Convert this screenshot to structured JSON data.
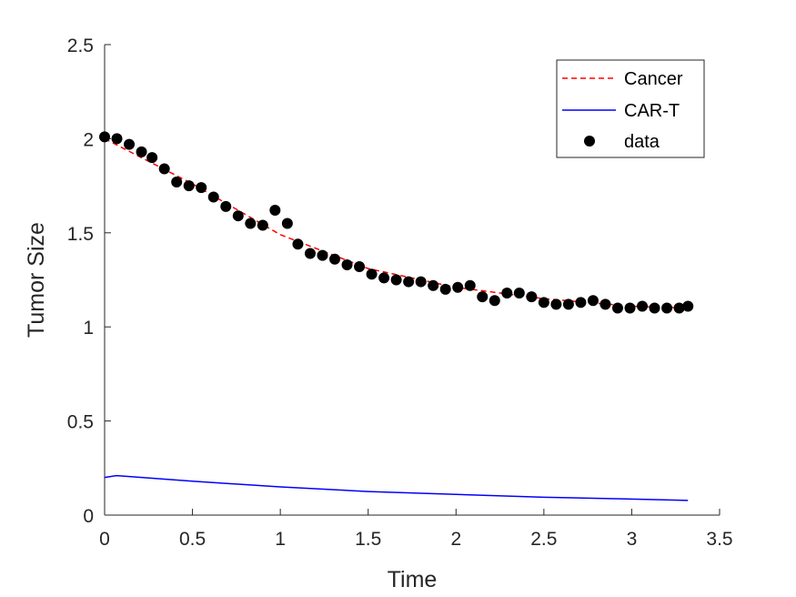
{
  "chart_data": {
    "type": "line",
    "xlabel": "Time",
    "ylabel": "Tumor Size",
    "xlim": [
      0,
      3.5
    ],
    "ylim": [
      0,
      2.5
    ],
    "xticks": [
      "0",
      "0.5",
      "1",
      "1.5",
      "2",
      "2.5",
      "3",
      "3.5"
    ],
    "yticks": [
      "0",
      "0.5",
      "1",
      "1.5",
      "2",
      "2.5"
    ],
    "grid": false,
    "legend_position": "top-right",
    "series": [
      {
        "name": "Cancer",
        "style": "dashed",
        "color": "#ff0000",
        "x": [
          0,
          0.5,
          1.0,
          1.5,
          2.0,
          2.5,
          3.0,
          3.32
        ],
        "y": [
          2.0,
          1.76,
          1.49,
          1.31,
          1.21,
          1.15,
          1.11,
          1.1
        ]
      },
      {
        "name": "CAR-T",
        "style": "solid",
        "color": "#0000ff",
        "x": [
          0,
          0.07,
          0.5,
          1.0,
          1.5,
          2.0,
          2.5,
          3.0,
          3.32
        ],
        "y": [
          0.2,
          0.21,
          0.18,
          0.15,
          0.125,
          0.11,
          0.095,
          0.085,
          0.078
        ]
      },
      {
        "name": "data",
        "style": "markers",
        "color": "#000000",
        "x": [
          0,
          0.07,
          0.14,
          0.21,
          0.27,
          0.34,
          0.41,
          0.48,
          0.55,
          0.62,
          0.69,
          0.76,
          0.83,
          0.9,
          0.97,
          1.04,
          1.1,
          1.17,
          1.24,
          1.31,
          1.38,
          1.45,
          1.52,
          1.59,
          1.66,
          1.73,
          1.8,
          1.87,
          1.94,
          2.01,
          2.08,
          2.15,
          2.22,
          2.29,
          2.36,
          2.43,
          2.5,
          2.57,
          2.64,
          2.71,
          2.78,
          2.85,
          2.92,
          2.99,
          3.06,
          3.13,
          3.2,
          3.27,
          3.32
        ],
        "y": [
          2.01,
          2.0,
          1.97,
          1.93,
          1.9,
          1.84,
          1.77,
          1.75,
          1.74,
          1.69,
          1.64,
          1.59,
          1.55,
          1.54,
          1.62,
          1.55,
          1.44,
          1.39,
          1.38,
          1.36,
          1.33,
          1.32,
          1.28,
          1.26,
          1.25,
          1.24,
          1.24,
          1.22,
          1.2,
          1.21,
          1.22,
          1.16,
          1.14,
          1.18,
          1.18,
          1.16,
          1.13,
          1.12,
          1.12,
          1.13,
          1.14,
          1.12,
          1.1,
          1.1,
          1.11,
          1.1,
          1.1,
          1.1,
          1.11
        ]
      }
    ]
  },
  "colors": {
    "cancer": "#ff0000",
    "cart": "#0000ff",
    "data": "#000000",
    "axis": "#262626"
  }
}
